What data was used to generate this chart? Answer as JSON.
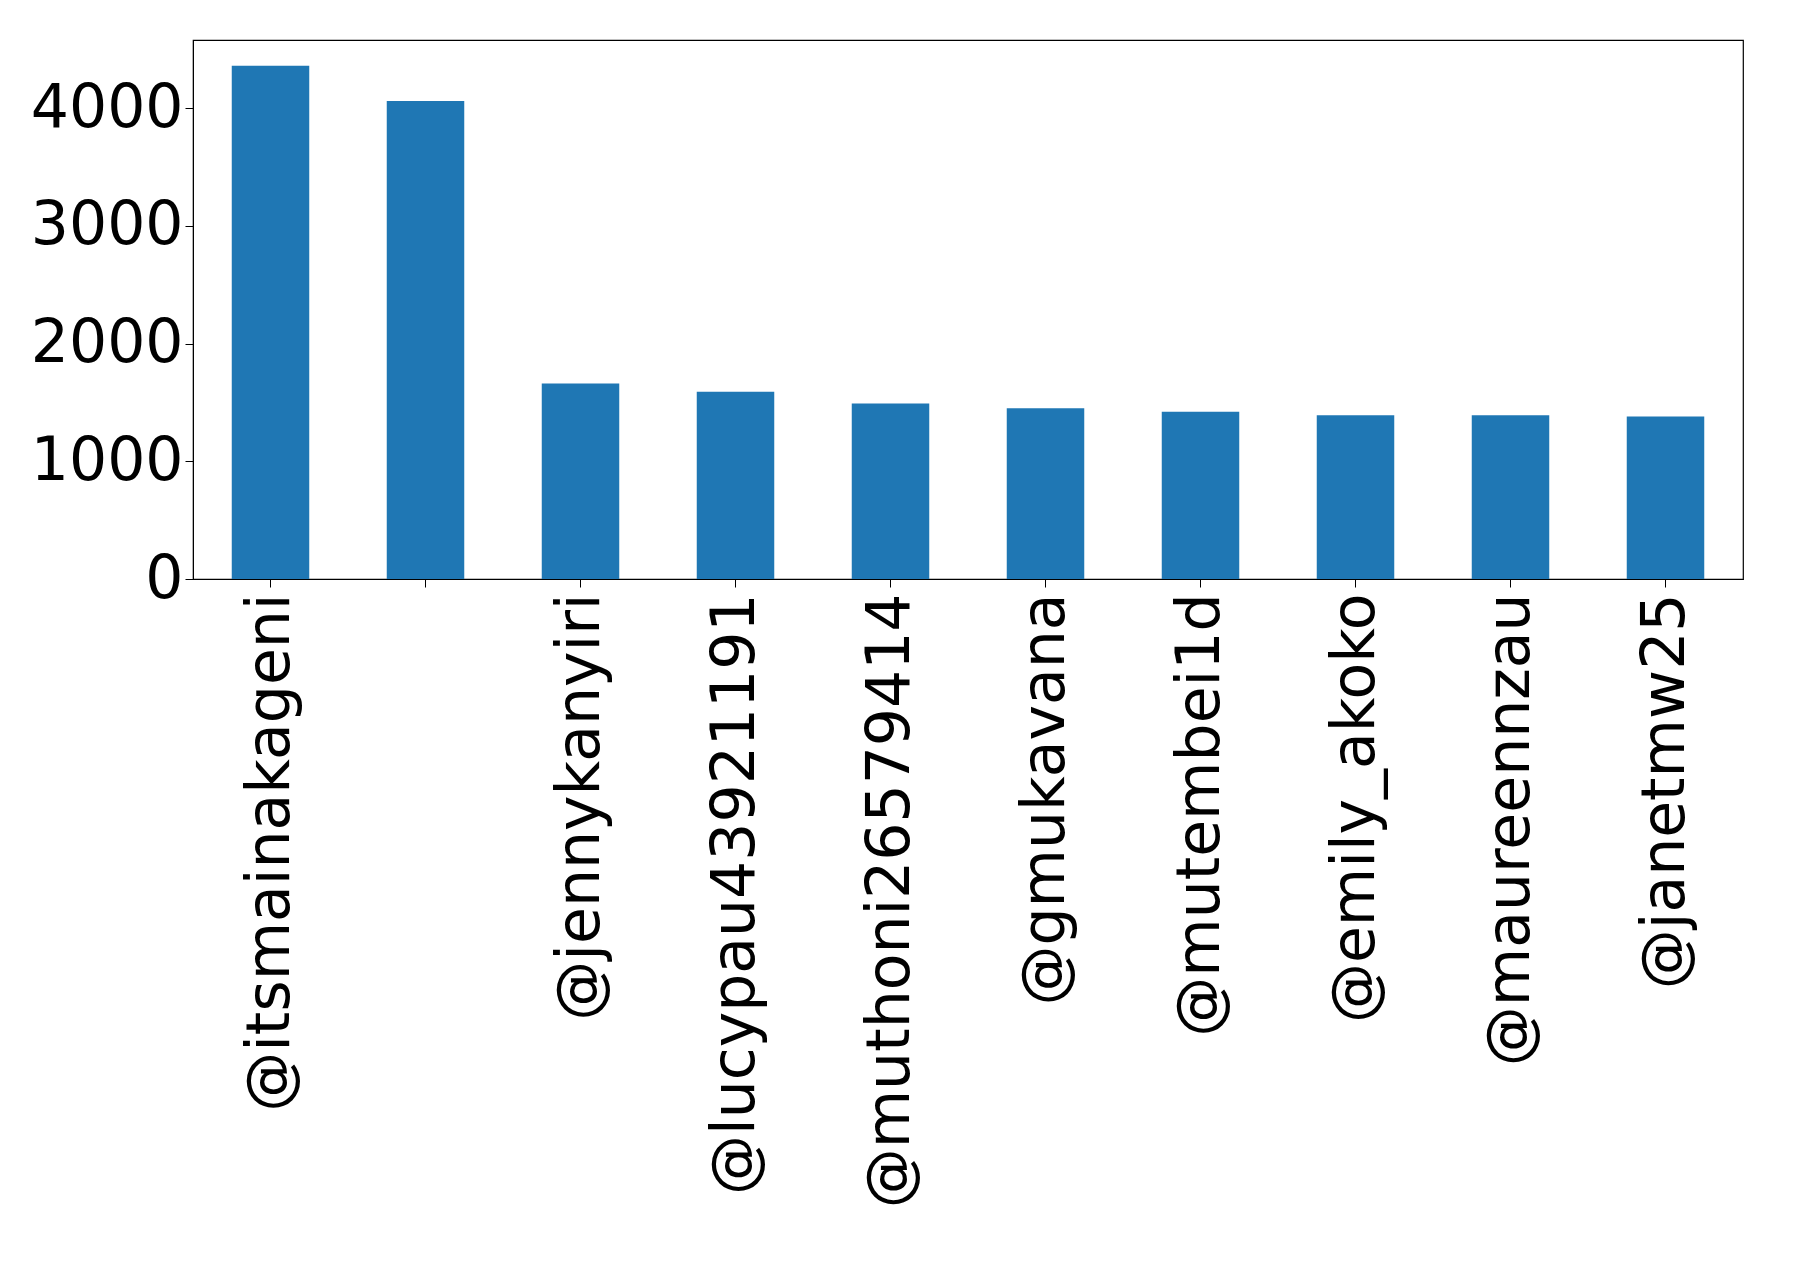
{
  "chart_data": {
    "type": "bar",
    "categories": [
      "@itsmainakageni",
      null,
      "@jennykanyiri",
      "@lucypau43921191",
      "@muthoni26579414",
      "@gmukavana",
      "@mutembei1d",
      "@emily_akoko",
      "@maureennzau",
      "@janetmw25"
    ],
    "values": [
      4360,
      4060,
      1660,
      1590,
      1490,
      1450,
      1420,
      1390,
      1390,
      1380
    ],
    "color": "#1f77b4",
    "ylim": [
      0,
      4578
    ],
    "yticks": [
      0,
      1000,
      2000,
      3000,
      4000
    ],
    "grid": false
  }
}
